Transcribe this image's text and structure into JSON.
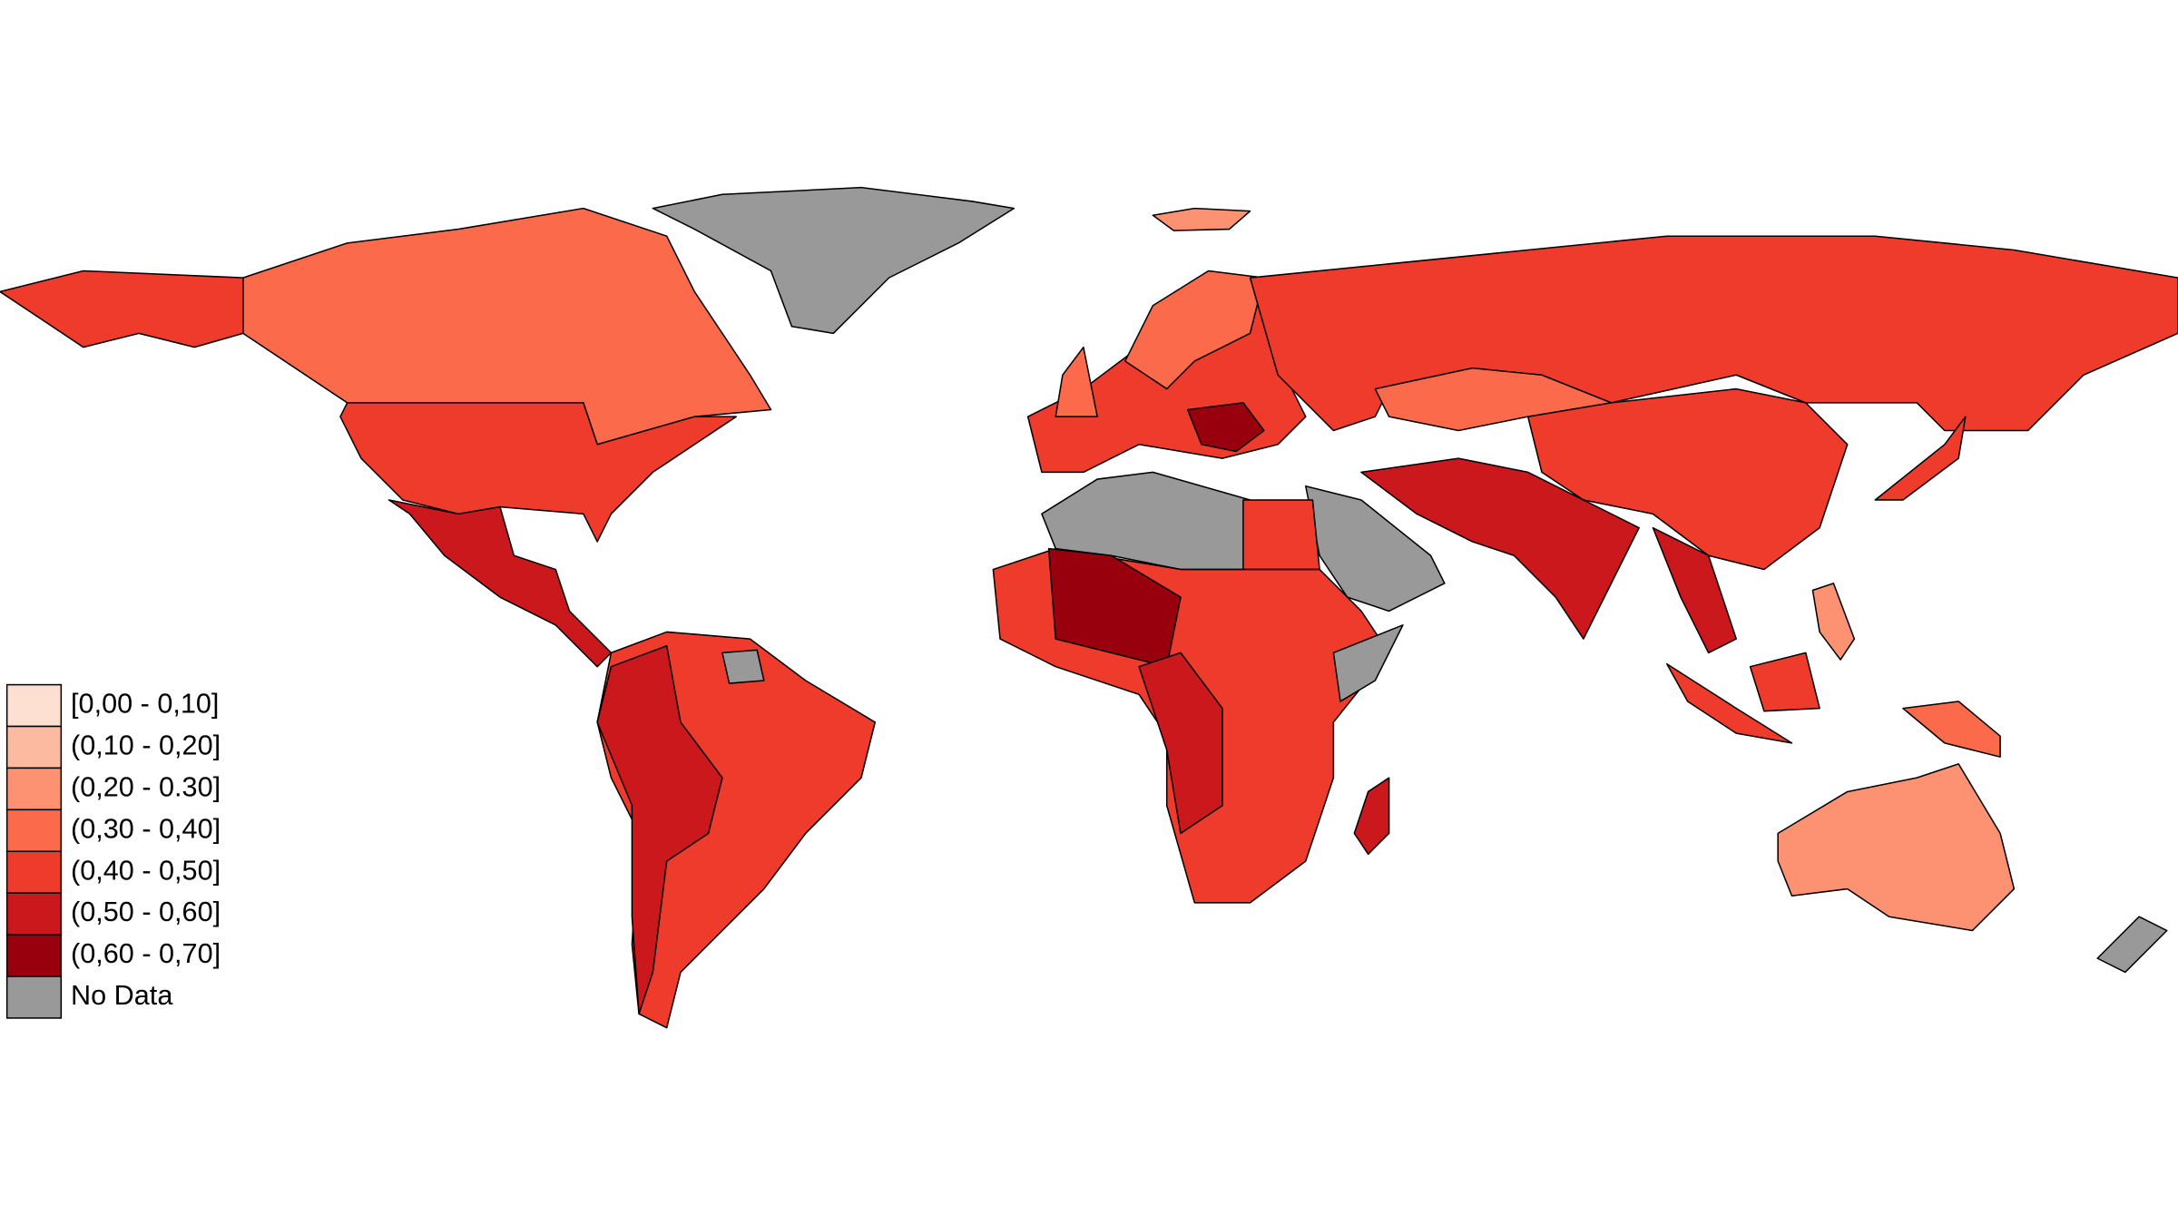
{
  "legend": {
    "items": [
      {
        "label": "[0,00 - 0,10]",
        "color": "#fee0d2"
      },
      {
        "label": "(0,10 - 0,20]",
        "color": "#fcbba1"
      },
      {
        "label": "(0,20 - 0.30]",
        "color": "#fc9272"
      },
      {
        "label": "(0,30 - 0,40]",
        "color": "#fb6a4a"
      },
      {
        "label": "(0,40 - 0,50]",
        "color": "#ef3b2c"
      },
      {
        "label": "(0,50 - 0,60]",
        "color": "#cb181d"
      },
      {
        "label": "(0,60 - 0,70]",
        "color": "#99000d"
      },
      {
        "label": "No Data",
        "color": "#999999"
      }
    ]
  }
}
